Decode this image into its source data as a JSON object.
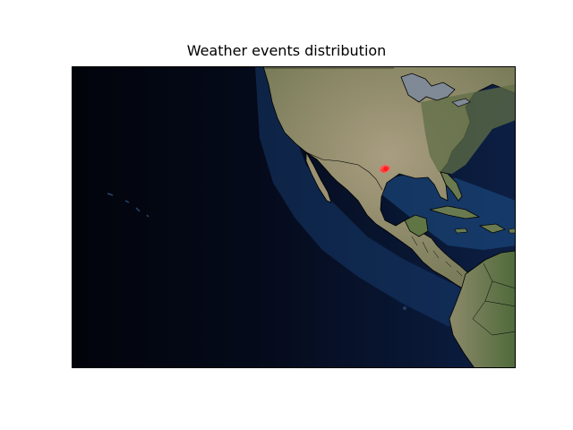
{
  "chart_data": {
    "type": "scatter",
    "title": "Weather events distribution",
    "xlabel": "",
    "ylabel": "",
    "basemap": "satellite imagery",
    "projection": "equirectangular",
    "xlim": [
      -180,
      -60
    ],
    "ylim": [
      -10,
      50
    ],
    "grid": false,
    "legend": "none",
    "points": [
      {
        "lon": -95.9,
        "lat": 29.5
      },
      {
        "lon": -95.6,
        "lat": 29.7
      },
      {
        "lon": -95.2,
        "lat": 29.8
      },
      {
        "lon": -94.8,
        "lat": 29.7
      },
      {
        "lon": -95.5,
        "lat": 29.4
      },
      {
        "lon": -95.1,
        "lat": 29.6
      }
    ]
  },
  "colors": {
    "ocean_deep": "#03060f",
    "ocean_mid": "#0d2147",
    "ocean_shelf": "#1f4f86",
    "land_green": "#6b7654",
    "land_desert": "#a69a7c",
    "lake": "#7f8a99",
    "border": "#000000",
    "point_fill": "#ff1a1a"
  }
}
